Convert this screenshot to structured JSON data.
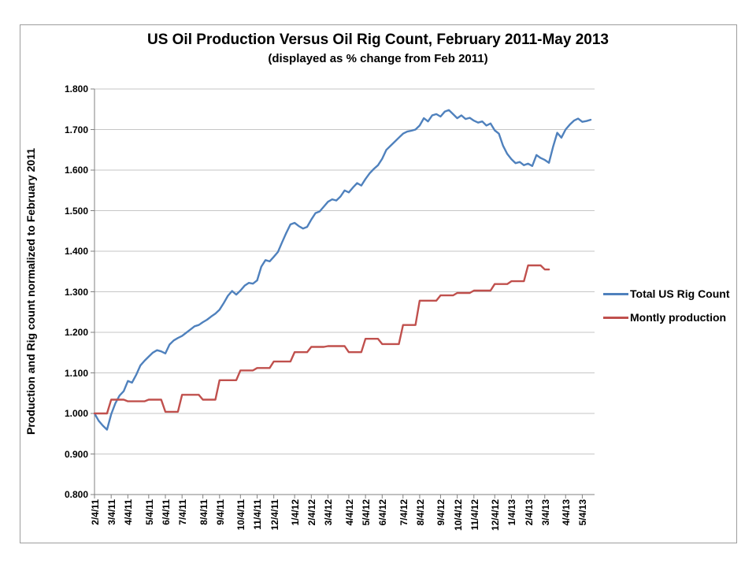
{
  "chart": {
    "title": "US Oil Production Versus Oil Rig Count, February 2011-May 2013",
    "subtitle": "(displayed as % change from Feb 2011)",
    "y_axis_label": "Production and Rig count normalized to February 2011"
  },
  "chart_data": {
    "type": "line",
    "title": "US Oil Production Versus Oil Rig Count, February 2011-May 2013",
    "subtitle": "(displayed as % change from Feb 2011)",
    "xlabel": "",
    "ylabel": "Production and Rig count normalized to February 2011",
    "ylim": [
      0.8,
      1.8
    ],
    "ytick_interval": 0.1,
    "ytick_labels": [
      "0.800",
      "0.900",
      "1.000",
      "1.100",
      "1.200",
      "1.300",
      "1.400",
      "1.500",
      "1.600",
      "1.700",
      "1.800"
    ],
    "grid": "horizontal-only",
    "legend_position": "right",
    "x_unit": "weeks, starting 2/4/11",
    "xtick_labels": [
      "2/4/11",
      "3/4/11",
      "4/4/11",
      "5/4/11",
      "6/4/11",
      "7/4/11",
      "8/4/11",
      "9/4/11",
      "10/4/11",
      "11/4/11",
      "12/4/11",
      "1/4/12",
      "2/4/12",
      "3/4/12",
      "4/4/12",
      "5/4/12",
      "6/4/12",
      "7/4/12",
      "8/4/12",
      "9/4/12",
      "10/4/12",
      "11/4/12",
      "12/4/12",
      "1/4/13",
      "2/4/13",
      "3/4/13",
      "4/4/13",
      "5/4/13"
    ],
    "xtick_weeks": [
      0,
      4,
      8,
      13,
      17,
      21,
      26,
      30,
      35,
      39,
      43,
      48,
      52,
      56,
      61,
      65,
      69,
      74,
      78,
      83,
      87,
      91,
      96,
      100,
      104,
      108,
      113,
      117
    ],
    "series": [
      {
        "name": "Total US Rig Count",
        "color": "#4F81BD",
        "cadence": "weekly",
        "start_week": 0,
        "values": [
          1.0,
          0.982,
          0.97,
          0.96,
          0.998,
          1.025,
          1.044,
          1.055,
          1.08,
          1.076,
          1.095,
          1.118,
          1.13,
          1.14,
          1.15,
          1.156,
          1.153,
          1.148,
          1.17,
          1.18,
          1.186,
          1.191,
          1.199,
          1.207,
          1.215,
          1.218,
          1.225,
          1.231,
          1.239,
          1.246,
          1.256,
          1.272,
          1.29,
          1.302,
          1.293,
          1.303,
          1.315,
          1.322,
          1.32,
          1.328,
          1.362,
          1.378,
          1.375,
          1.386,
          1.398,
          1.422,
          1.445,
          1.466,
          1.47,
          1.462,
          1.456,
          1.46,
          1.478,
          1.494,
          1.498,
          1.51,
          1.522,
          1.528,
          1.525,
          1.535,
          1.55,
          1.545,
          1.557,
          1.568,
          1.562,
          1.578,
          1.592,
          1.603,
          1.612,
          1.628,
          1.65,
          1.66,
          1.67,
          1.68,
          1.69,
          1.695,
          1.697,
          1.7,
          1.71,
          1.728,
          1.72,
          1.735,
          1.738,
          1.732,
          1.744,
          1.748,
          1.738,
          1.728,
          1.735,
          1.726,
          1.729,
          1.722,
          1.717,
          1.72,
          1.71,
          1.715,
          1.698,
          1.69,
          1.66,
          1.64,
          1.627,
          1.617,
          1.62,
          1.612,
          1.616,
          1.61,
          1.637,
          1.63,
          1.625,
          1.618,
          1.658,
          1.692,
          1.68,
          1.7,
          1.712,
          1.722,
          1.727,
          1.719,
          1.721,
          1.724
        ]
      },
      {
        "name": "Montly production",
        "color": "#C0504D",
        "cadence": "monthly",
        "months": [
          "Feb 2011",
          "Mar 2011",
          "Apr 2011",
          "May 2011",
          "Jun 2011",
          "Jul 2011",
          "Aug 2011",
          "Sep 2011",
          "Oct 2011",
          "Nov 2011",
          "Dec 2011",
          "Jan 2012",
          "Feb 2012",
          "Mar 2012",
          "Apr 2012",
          "May 2012",
          "Jun 2012",
          "Jul 2012",
          "Aug 2012",
          "Sep 2012",
          "Oct 2012",
          "Nov 2012",
          "Dec 2012",
          "Jan 2013",
          "Feb 2013",
          "Mar 2013"
        ],
        "values": [
          1.0,
          1.034,
          1.03,
          1.034,
          1.004,
          1.046,
          1.034,
          1.082,
          1.106,
          1.112,
          1.128,
          1.151,
          1.164,
          1.166,
          1.151,
          1.184,
          1.171,
          1.218,
          1.278,
          1.291,
          1.297,
          1.303,
          1.319,
          1.326,
          1.365,
          1.355
        ],
        "month_start_weeks": [
          0,
          4,
          8,
          13,
          17,
          21,
          26,
          30,
          35,
          39,
          43,
          48,
          52,
          56,
          61,
          65,
          69,
          74,
          78,
          83,
          87,
          91,
          96,
          100,
          104,
          108
        ],
        "end_week": 109
      }
    ]
  },
  "colors": {
    "rig_count_line": "#4F81BD",
    "production_line": "#C0504D",
    "gridline": "#C6C6C6",
    "axis": "#808080",
    "frame_border": "#9D9D9D",
    "text": "#000000"
  }
}
